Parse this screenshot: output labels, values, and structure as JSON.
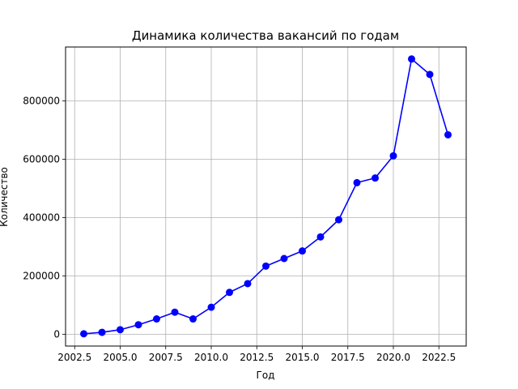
{
  "chart_data": {
    "type": "line",
    "title": "Динамика количества вакансий по годам",
    "xlabel": "Год",
    "ylabel": "Количество",
    "xlim": [
      2002.0,
      2024.0
    ],
    "ylim": [
      -40000,
      985000
    ],
    "x_ticks": [
      2002.5,
      2005.0,
      2007.5,
      2010.0,
      2012.5,
      2015.0,
      2017.5,
      2020.0,
      2022.5
    ],
    "x_tick_labels": [
      "2002.5",
      "2005.0",
      "2007.5",
      "2010.0",
      "2012.5",
      "2015.0",
      "2017.5",
      "2020.0",
      "2022.5"
    ],
    "y_ticks": [
      0,
      200000,
      400000,
      600000,
      800000
    ],
    "y_tick_labels": [
      "0",
      "200000",
      "400000",
      "600000",
      "800000"
    ],
    "grid": true,
    "series_color": "#0000ff",
    "series": [
      {
        "x": [
          2003,
          2004,
          2005,
          2006,
          2007,
          2008,
          2009,
          2010,
          2011,
          2012,
          2013,
          2014,
          2015,
          2016,
          2017,
          2018,
          2019,
          2020,
          2021,
          2022,
          2023
        ],
        "values": [
          2000,
          7000,
          16000,
          33000,
          53000,
          76000,
          53000,
          93000,
          144000,
          174000,
          234000,
          260000,
          286000,
          334000,
          393000,
          520000,
          536000,
          612000,
          944000,
          891000,
          684000
        ]
      }
    ]
  }
}
